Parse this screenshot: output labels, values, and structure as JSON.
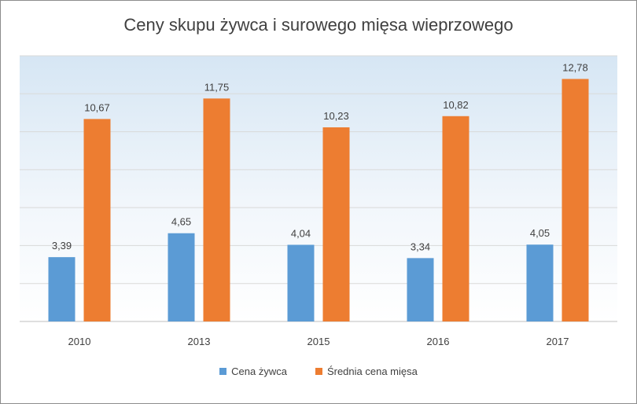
{
  "chart_data": {
    "type": "bar",
    "title": "Ceny skupu żywca i surowego mięsa wieprzowego",
    "categories": [
      "2010",
      "2013",
      "2015",
      "2016",
      "2017"
    ],
    "series": [
      {
        "name": "Cena żywca",
        "color": "#5b9bd5",
        "values": [
          3.39,
          4.65,
          4.04,
          3.34,
          4.05
        ],
        "labels": [
          "3,39",
          "4,65",
          "4,04",
          "3,34",
          "4,05"
        ]
      },
      {
        "name": "Średnia cena mięsa",
        "color": "#ed7d31",
        "values": [
          10.67,
          11.75,
          10.23,
          10.82,
          12.78
        ],
        "labels": [
          "10,67",
          "11,75",
          "10,23",
          "10,82",
          "12,78"
        ]
      }
    ],
    "ylim": [
      0,
      14
    ],
    "grid": true,
    "legend": "bottom"
  }
}
